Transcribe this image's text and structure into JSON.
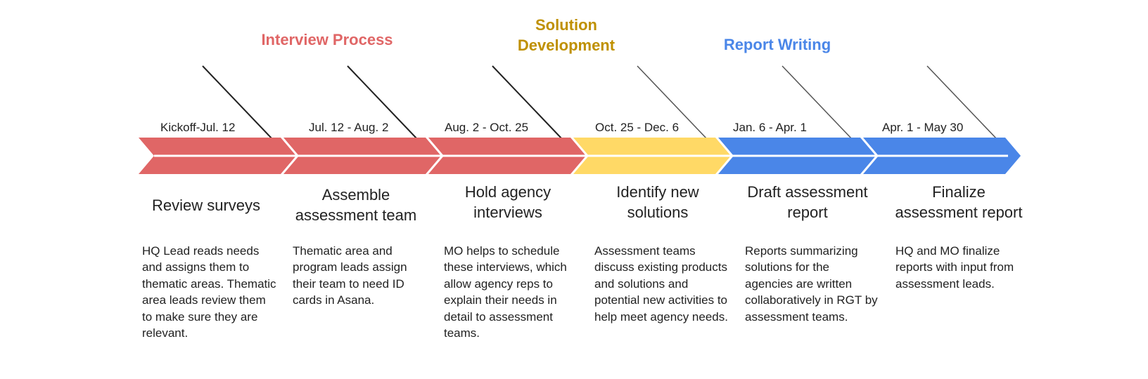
{
  "colors": {
    "interview": "#e06666",
    "solution": "#ffd966",
    "report": "#4a86e8",
    "interview_text": "#e06666",
    "solution_text": "#bf9000",
    "report_text": "#4a86e8"
  },
  "phases": [
    {
      "label": "Interview Process",
      "color_key": "interview_text"
    },
    {
      "label": "Solution\nDevelopment",
      "color_key": "solution_text"
    },
    {
      "label": "Report Writing",
      "color_key": "report_text"
    }
  ],
  "steps": [
    {
      "date": "Kickoff-Jul. 12",
      "title": "Review surveys",
      "description": "HQ Lead reads needs and assigns them to thematic areas. Thematic area leads review them to make sure they are relevant.",
      "color_key": "interview"
    },
    {
      "date": "Jul. 12 - Aug. 2",
      "title": "Assemble assessment team",
      "description": "Thematic area and program leads assign their team to need ID cards in Asana.",
      "color_key": "interview"
    },
    {
      "date": "Aug. 2 - Oct. 25",
      "title": "Hold agency interviews",
      "description": "MO helps to schedule these interviews, which allow agency reps to explain their needs in detail to assessment teams.",
      "color_key": "interview"
    },
    {
      "date": "Oct. 25 - Dec. 6",
      "title": "Identify new solutions",
      "description": "Assessment teams discuss existing products and solutions and potential new activities to help meet agency needs.",
      "color_key": "solution"
    },
    {
      "date": "Jan. 6 - Apr. 1",
      "title": "Draft assessment report",
      "description": "Reports summarizing solutions for the agencies are written collaboratively in RGT by assessment teams.",
      "color_key": "report"
    },
    {
      "date": "Apr. 1 - May 30",
      "title": "Finalize assessment report",
      "description": "HQ and MO finalize reports with input from assessment leads.",
      "color_key": "report"
    }
  ]
}
